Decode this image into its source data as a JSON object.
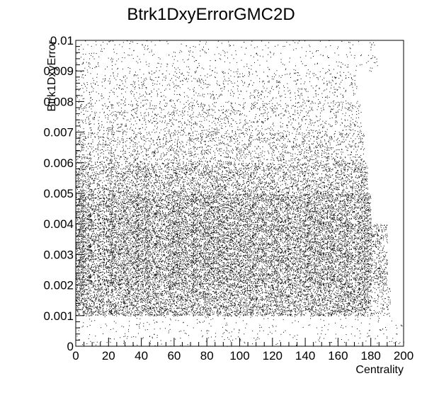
{
  "chart_data": {
    "type": "heatmap",
    "title": "Btrk1DxyErrorGMC2D",
    "xlabel": "Centrality",
    "ylabel": "Btrk1DxyError",
    "xlim": [
      0,
      200
    ],
    "ylim": [
      0,
      0.01
    ],
    "x_ticks": [
      "0",
      "20",
      "40",
      "60",
      "80",
      "100",
      "120",
      "140",
      "160",
      "180",
      "200"
    ],
    "y_ticks": [
      "0",
      "0.001",
      "0.002",
      "0.003",
      "0.004",
      "0.005",
      "0.006",
      "0.007",
      "0.008",
      "0.009",
      "0.01"
    ],
    "grid": false,
    "legend": "none",
    "marker_color": "#000000",
    "density_regions": [
      {
        "x": [
          0,
          180
        ],
        "y": [
          0.001,
          0.002
        ],
        "density": 0.45
      },
      {
        "x": [
          0,
          180
        ],
        "y": [
          0.002,
          0.003
        ],
        "density": 0.75
      },
      {
        "x": [
          0,
          180
        ],
        "y": [
          0.003,
          0.004
        ],
        "density": 0.65
      },
      {
        "x": [
          0,
          180
        ],
        "y": [
          0.004,
          0.005
        ],
        "density": 0.5
      },
      {
        "x": [
          0,
          178
        ],
        "y": [
          0.005,
          0.006
        ],
        "density": 0.32
      },
      {
        "x": [
          0,
          176
        ],
        "y": [
          0.006,
          0.007
        ],
        "density": 0.18
      },
      {
        "x": [
          0,
          174
        ],
        "y": [
          0.007,
          0.008
        ],
        "density": 0.12
      },
      {
        "x": [
          0,
          172
        ],
        "y": [
          0.008,
          0.009
        ],
        "density": 0.08
      },
      {
        "x": [
          0,
          184
        ],
        "y": [
          0.009,
          0.01
        ],
        "density": 0.04
      },
      {
        "x": [
          180,
          190
        ],
        "y": [
          0.002,
          0.004
        ],
        "density": 0.3
      },
      {
        "x": [
          180,
          192
        ],
        "y": [
          0.001,
          0.002
        ],
        "density": 0.15
      },
      {
        "x": [
          0,
          200
        ],
        "y": [
          0,
          0.001
        ],
        "density": 0.03
      }
    ]
  }
}
